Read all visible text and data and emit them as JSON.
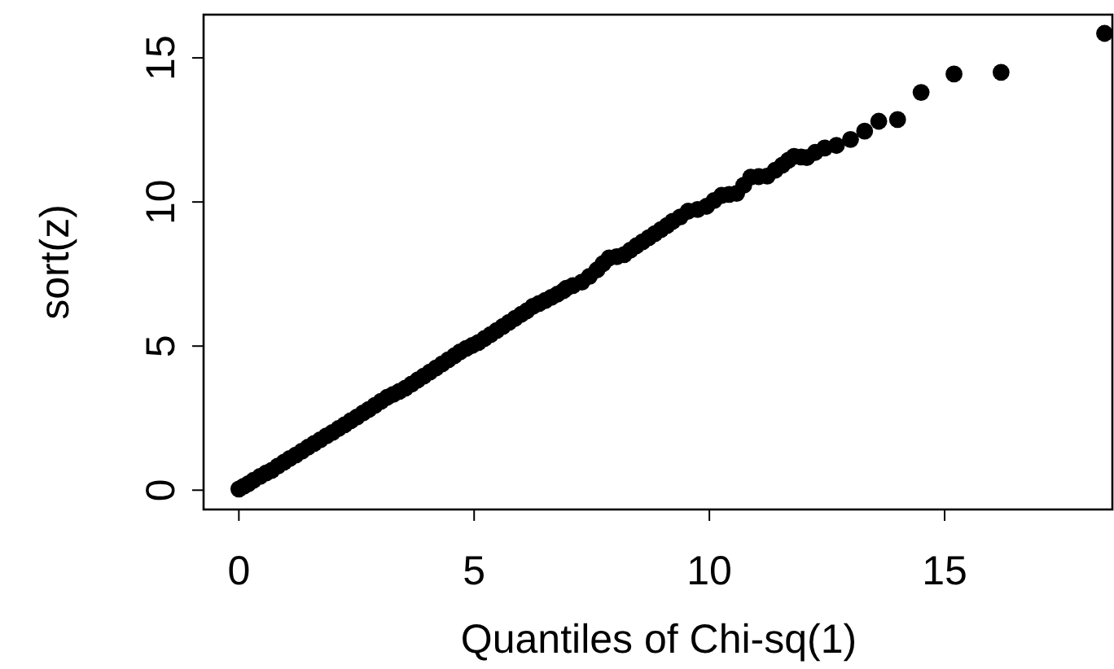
{
  "chart_data": {
    "type": "scatter",
    "xlabel": "Quantiles of Chi-sq(1)",
    "ylabel": "sort(z)",
    "xlim": [
      -0.75,
      18.6
    ],
    "ylim": [
      -0.67,
      16.5
    ],
    "xticks": [
      0,
      5,
      10,
      15
    ],
    "yticks": [
      0,
      5,
      10,
      15
    ],
    "grid": false,
    "marker": "circle",
    "series": [
      {
        "color": "#000000",
        "x": [
          0,
          0.1,
          0.2,
          0.31,
          0.45,
          0.58,
          0.7,
          0.83,
          0.96,
          1.08,
          1.21,
          1.34,
          1.47,
          1.6,
          1.73,
          1.86,
          1.99,
          2.12,
          2.25,
          2.38,
          2.51,
          2.64,
          2.76,
          2.89,
          3.02,
          3.15,
          3.28,
          3.41,
          3.54,
          3.67,
          3.8,
          3.93,
          4.06,
          4.19,
          4.32,
          4.45,
          4.58,
          4.7,
          4.83,
          4.96,
          5.09,
          5.22,
          5.35,
          5.48,
          5.61,
          5.74,
          5.87,
          6.0,
          6.12,
          6.25,
          6.38,
          6.51,
          6.64,
          6.77,
          6.9,
          6.96,
          7.1,
          7.29,
          7.45,
          7.61,
          7.74,
          7.87,
          8.03,
          8.19,
          8.32,
          8.45,
          8.58,
          8.71,
          8.84,
          8.97,
          9.1,
          9.22,
          9.38,
          9.55,
          9.75,
          9.94,
          10.1,
          10.26,
          10.42,
          10.58,
          10.73,
          10.88,
          11.05,
          11.23,
          11.4,
          11.55,
          11.68,
          11.8,
          11.95,
          12.07,
          12.25,
          12.45,
          12.7,
          13.0,
          13.3,
          13.6,
          14.0,
          14.5,
          15.2,
          16.2,
          18.4
        ],
        "values": [
          0.04,
          0.13,
          0.22,
          0.34,
          0.48,
          0.6,
          0.69,
          0.84,
          0.97,
          1.1,
          1.22,
          1.35,
          1.49,
          1.62,
          1.75,
          1.88,
          2.0,
          2.14,
          2.27,
          2.41,
          2.54,
          2.68,
          2.8,
          2.94,
          3.08,
          3.22,
          3.32,
          3.43,
          3.54,
          3.68,
          3.82,
          3.96,
          4.1,
          4.24,
          4.38,
          4.52,
          4.66,
          4.8,
          4.92,
          5.02,
          5.12,
          5.26,
          5.4,
          5.54,
          5.68,
          5.82,
          5.96,
          6.1,
          6.22,
          6.38,
          6.48,
          6.58,
          6.69,
          6.8,
          6.92,
          7.01,
          7.1,
          7.22,
          7.42,
          7.64,
          7.86,
          8.06,
          8.1,
          8.17,
          8.33,
          8.48,
          8.62,
          8.76,
          8.9,
          9.04,
          9.18,
          9.33,
          9.48,
          9.68,
          9.74,
          9.85,
          10.05,
          10.23,
          10.26,
          10.3,
          10.58,
          10.86,
          10.88,
          10.9,
          11.1,
          11.28,
          11.45,
          11.58,
          11.56,
          11.54,
          11.72,
          11.87,
          11.96,
          12.17,
          12.46,
          12.8,
          12.86,
          13.8,
          14.44,
          14.5,
          15.85
        ]
      }
    ]
  }
}
